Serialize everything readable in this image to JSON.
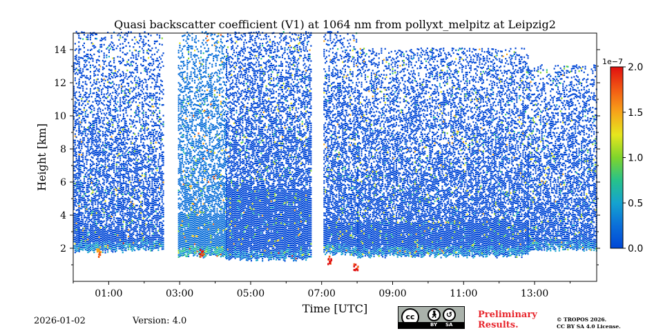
{
  "chart_data": {
    "type": "heatmap",
    "title": "Quasi backscatter coefficient (V1) at 1064 nm from pollyxt_melpitz at Leipzig2",
    "xlabel": "Time [UTC]",
    "ylabel": "Height [km]",
    "x_unit": "hours UTC",
    "xlim": [
      0.0,
      14.75
    ],
    "ylim": [
      0.0,
      15.0
    ],
    "x_ticks": [
      1,
      3,
      5,
      7,
      9,
      11,
      13
    ],
    "x_tick_labels": [
      "01:00",
      "03:00",
      "05:00",
      "07:00",
      "09:00",
      "11:00",
      "13:00"
    ],
    "x_minor_ticks": [
      0,
      2,
      4,
      6,
      8,
      10,
      12,
      14
    ],
    "y_ticks": [
      2,
      4,
      6,
      8,
      10,
      12,
      14
    ],
    "y_tick_labels": [
      "2",
      "4",
      "6",
      "8",
      "10",
      "12",
      "14"
    ],
    "colorbar": {
      "min": 0.0,
      "max": 2.0,
      "multiplier_label": "1e−7",
      "ticks": [
        0.0,
        0.5,
        1.0,
        1.5,
        2.0
      ],
      "tick_labels": [
        "0.0",
        "0.5",
        "1.0",
        "1.5",
        "2.0"
      ],
      "colormap": [
        "#0047d6",
        "#0b6fd9",
        "#15a3cf",
        "#27c28a",
        "#7fd42c",
        "#e6e61e",
        "#f7a41a",
        "#f25a14",
        "#e01010"
      ]
    },
    "no_signal_periods": [
      [
        2.55,
        2.95
      ],
      [
        4.7,
        4.8
      ],
      [
        6.7,
        7.05
      ]
    ],
    "segments": [
      {
        "t": [
          0.0,
          0.15
        ],
        "base_km": 1.8,
        "top_km": 15.0,
        "dense_top_km": 4.0,
        "background": 0.02
      },
      {
        "t": [
          0.15,
          1.4
        ],
        "base_km": 1.8,
        "top_km": 15.0,
        "dense_top_km": 3.0,
        "background": 0.05
      },
      {
        "t": [
          1.4,
          2.55
        ],
        "base_km": 1.9,
        "top_km": 15.0,
        "dense_top_km": 2.5,
        "background": 0.05
      },
      {
        "t": [
          2.95,
          4.3
        ],
        "base_km": 1.5,
        "top_km": 15.0,
        "dense_top_km": 4.0,
        "background": 0.3
      },
      {
        "t": [
          4.3,
          6.7
        ],
        "base_km": 1.3,
        "top_km": 15.0,
        "dense_top_km": 5.5,
        "background": 0.02
      },
      {
        "t": [
          7.05,
          8.0
        ],
        "base_km": 1.6,
        "top_km": 15.0,
        "dense_top_km": 3.5,
        "background": 0.08
      },
      {
        "t": [
          8.0,
          12.8
        ],
        "base_km": 1.5,
        "top_km": 14.0,
        "dense_top_km": 3.5,
        "background": 0.05
      },
      {
        "t": [
          12.8,
          14.75
        ],
        "base_km": 1.9,
        "top_km": 13.0,
        "dense_top_km": 2.5,
        "background": 0.02
      }
    ],
    "high_value_features": [
      {
        "t": 7.95,
        "height_km": 0.6,
        "value": 2.0
      },
      {
        "t": 7.2,
        "height_km": 1.1,
        "value": 2.0
      },
      {
        "t": 0.7,
        "height_km": 1.5,
        "value": 1.8
      },
      {
        "t": 3.6,
        "height_km": 1.5,
        "value": 1.9
      }
    ]
  },
  "footer": {
    "date": "2026-01-02",
    "version": "Version: 4.0",
    "license_badge": {
      "cc": "cc",
      "by": "BY",
      "sa": "SA"
    },
    "preliminary_line1": "Preliminary",
    "preliminary_line2": "Results.",
    "copyright_line1": "© TROPOS 2026.",
    "copyright_line2": "CC BY SA 4.0 License."
  }
}
